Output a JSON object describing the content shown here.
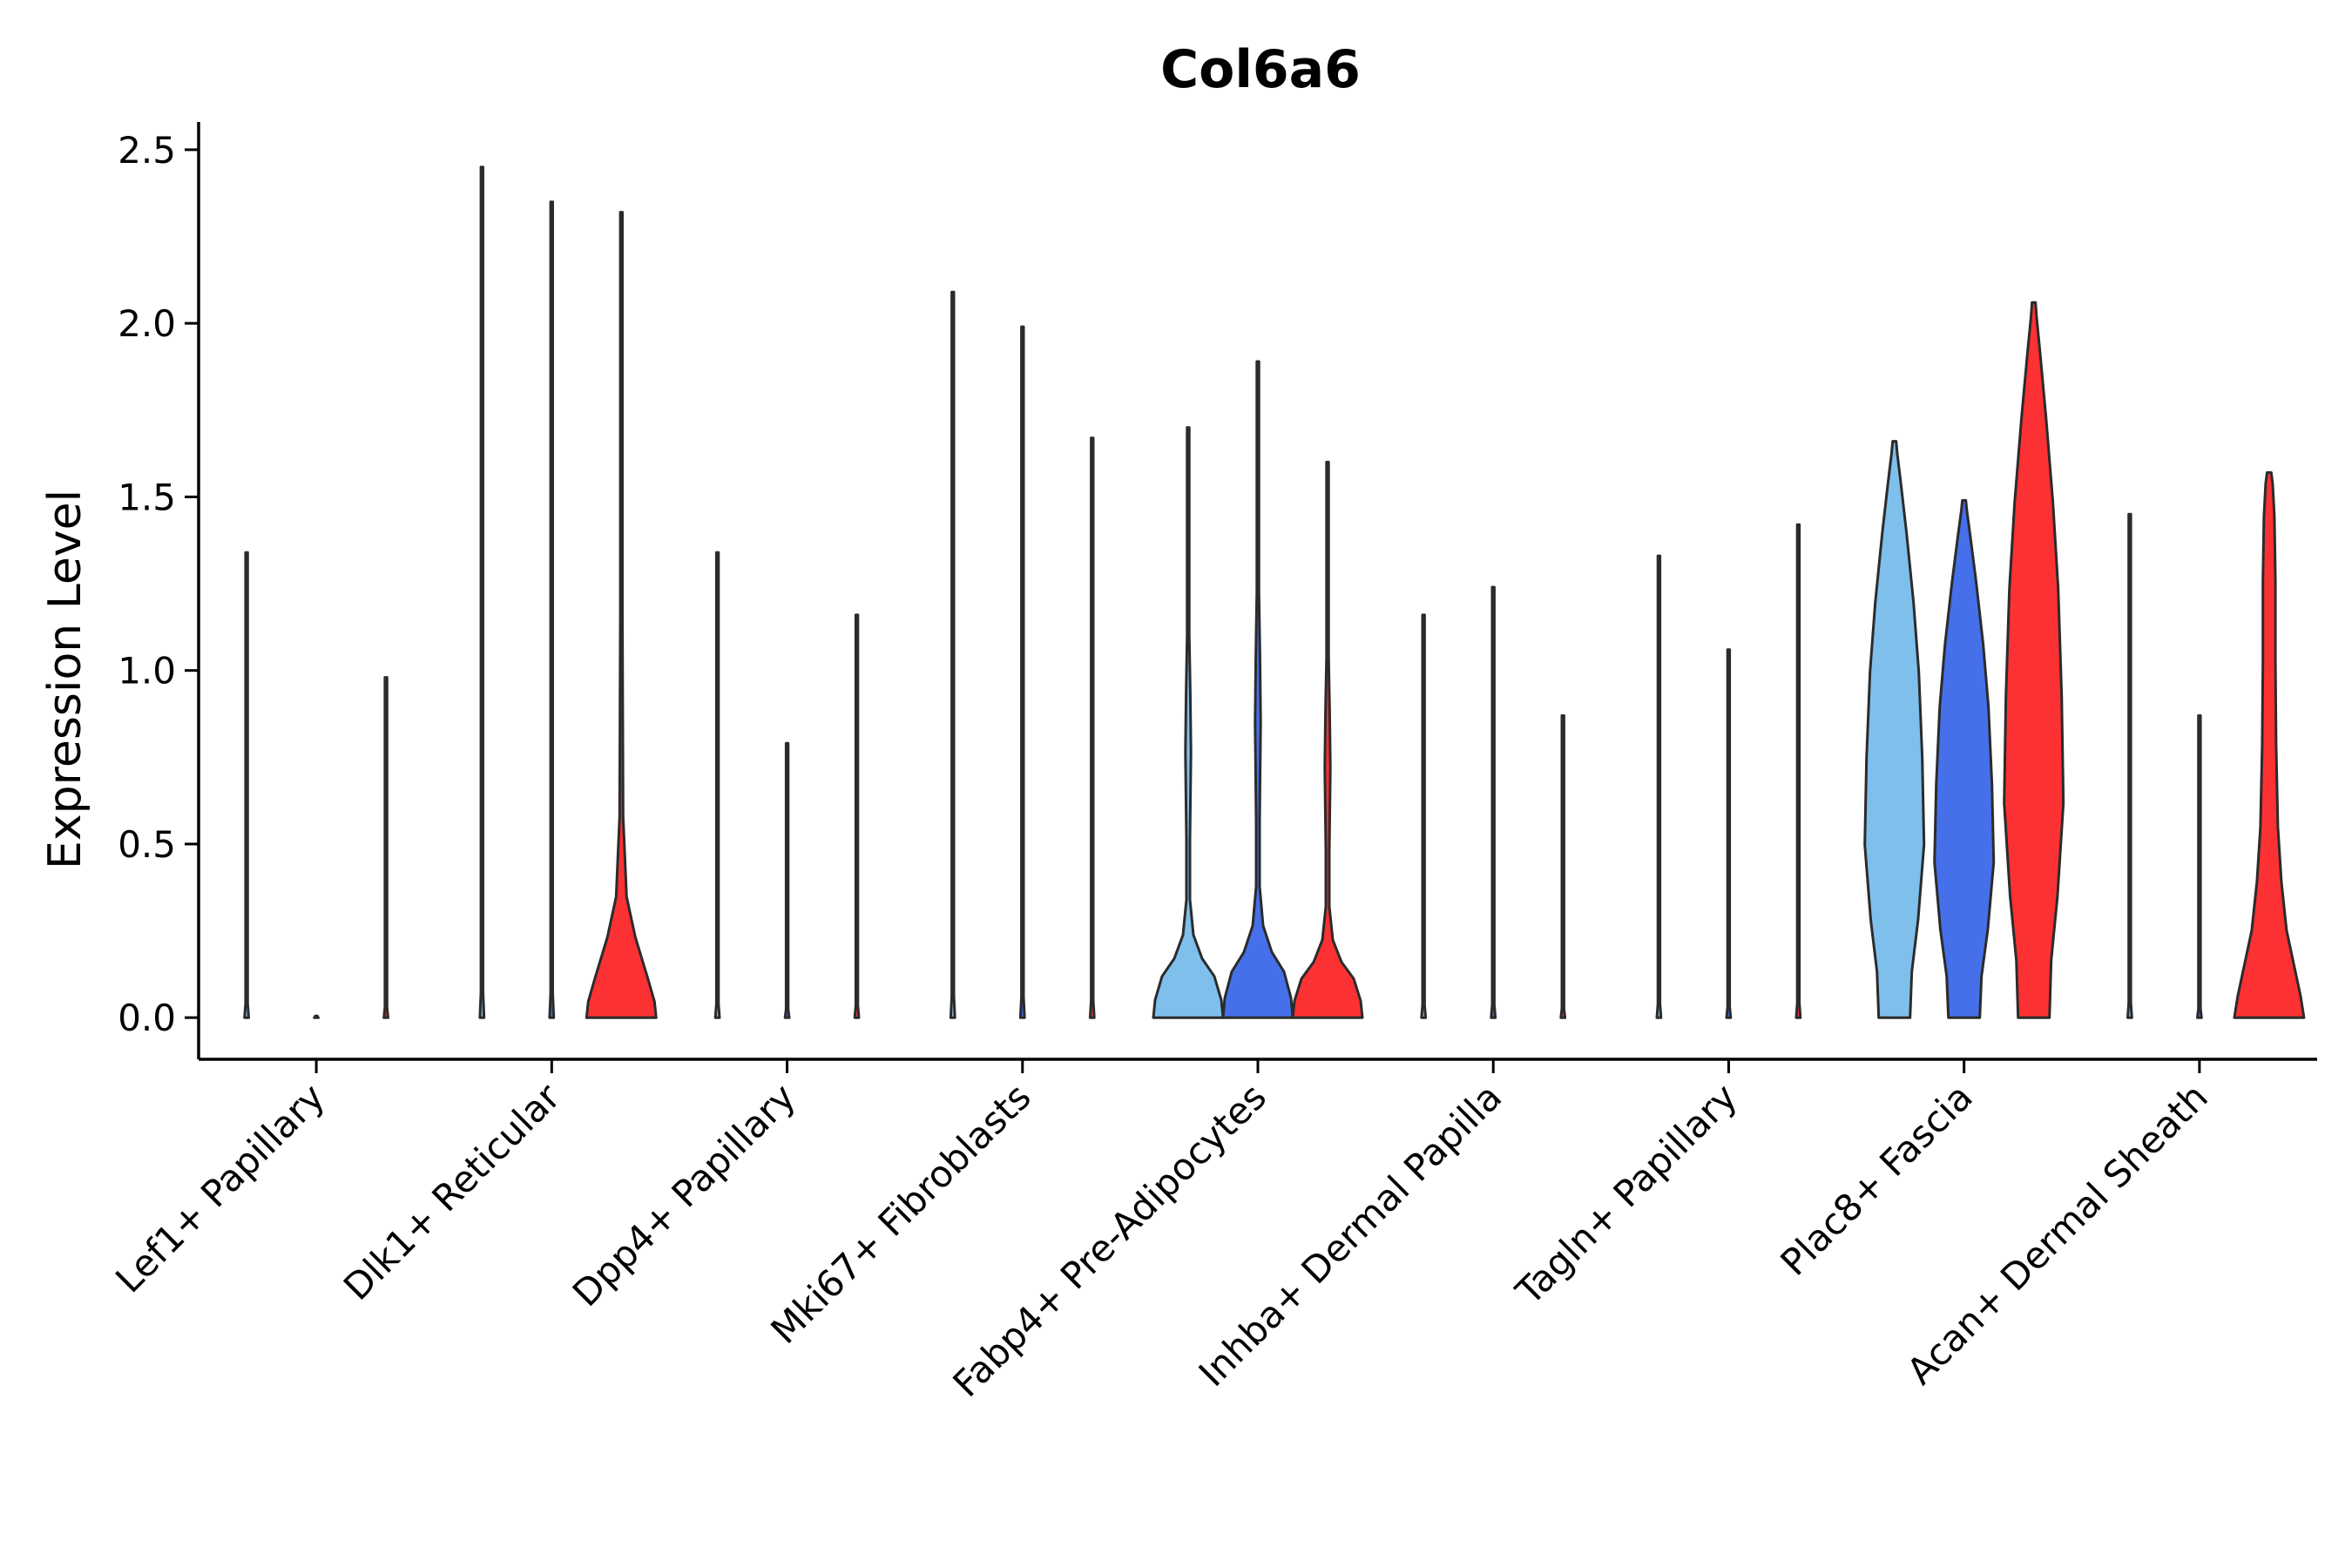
{
  "chart_data": {
    "type": "violin",
    "title": "Col6a6",
    "xlabel": "",
    "ylabel": "Expression Level",
    "ylim": [
      -0.12,
      2.58
    ],
    "yticks": [
      "0.0",
      "0.5",
      "1.0",
      "1.5",
      "2.0",
      "2.5"
    ],
    "categories": [
      "Lef1+ Papillary",
      "Dlk1+ Reticular",
      "Dpp4+ Papillary",
      "Mki67+ Fibroblasts",
      "Fabp4+ Pre-Adipocytes",
      "Inhba+ Dermal Papilla",
      "Tagln+ Papillary",
      "Plac8+ Fascia",
      "Acan+ Dermal Sheath"
    ],
    "series_colors": [
      "#7fbfec",
      "#4570ea",
      "#fc3133"
    ],
    "groups": [
      [
        {
          "max": 1.34,
          "shape": "flat"
        },
        {
          "max": 0.0,
          "shape": "flat"
        },
        {
          "max": 0.98,
          "shape": "flat"
        }
      ],
      [
        {
          "max": 2.45,
          "shape": "flat"
        },
        {
          "max": 2.35,
          "shape": "flat"
        },
        {
          "max": 2.32,
          "shape": "bump"
        }
      ],
      [
        {
          "max": 1.34,
          "shape": "flat"
        },
        {
          "max": 0.79,
          "shape": "flat"
        },
        {
          "max": 1.16,
          "shape": "flat"
        }
      ],
      [
        {
          "max": 2.09,
          "shape": "flat"
        },
        {
          "max": 1.99,
          "shape": "flat"
        },
        {
          "max": 1.67,
          "shape": "flat"
        }
      ],
      [
        {
          "max": 1.7,
          "shape": "mid"
        },
        {
          "max": 1.89,
          "shape": "mid"
        },
        {
          "max": 1.6,
          "shape": "mid"
        }
      ],
      [
        {
          "max": 1.16,
          "shape": "flat"
        },
        {
          "max": 1.24,
          "shape": "flat"
        },
        {
          "max": 0.87,
          "shape": "flat"
        }
      ],
      [
        {
          "max": 1.33,
          "shape": "flat"
        },
        {
          "max": 1.06,
          "shape": "flat"
        },
        {
          "max": 1.42,
          "shape": "flat"
        }
      ],
      [
        {
          "max": 1.66,
          "shape": "wide"
        },
        {
          "max": 1.49,
          "shape": "wide"
        },
        {
          "max": 2.06,
          "shape": "wide"
        }
      ],
      [
        {
          "max": 1.45,
          "shape": "flat"
        },
        {
          "max": 0.87,
          "shape": "flat"
        },
        {
          "max": 1.57,
          "shape": "tall"
        }
      ]
    ]
  }
}
